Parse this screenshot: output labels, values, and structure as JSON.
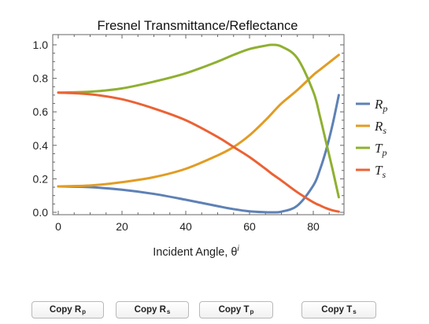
{
  "chart_data": {
    "type": "line",
    "title": "Fresnel Transmittance/Reflectance",
    "xlabel": "Incident Angle, θ",
    "xlabel_superscript": "i",
    "xlim": [
      0,
      90
    ],
    "ylim": [
      0,
      1.02
    ],
    "xticks": [
      0,
      20,
      40,
      60,
      80
    ],
    "yticks": [
      "0.0",
      "0.2",
      "0.4",
      "0.6",
      "0.8",
      "1.0"
    ],
    "grid": false,
    "legend_position": "right",
    "x": [
      0,
      10,
      20,
      30,
      40,
      50,
      55,
      60,
      65,
      67,
      70,
      75,
      80,
      82,
      84,
      86,
      88
    ],
    "series": [
      {
        "name": "R",
        "subscript": "p",
        "color": "#5e81b5",
        "values": [
          0.155,
          0.15,
          0.135,
          0.11,
          0.075,
          0.037,
          0.019,
          0.006,
          0.0005,
          0.0,
          0.004,
          0.04,
          0.16,
          0.25,
          0.37,
          0.52,
          0.7
        ]
      },
      {
        "name": "R",
        "subscript": "s",
        "color": "#e19c24",
        "values": [
          0.155,
          0.16,
          0.18,
          0.21,
          0.26,
          0.34,
          0.39,
          0.46,
          0.55,
          0.59,
          0.65,
          0.73,
          0.82,
          0.85,
          0.88,
          0.91,
          0.94
        ]
      },
      {
        "name": "T",
        "subscript": "p",
        "color": "#8fb032",
        "values": [
          0.715,
          0.72,
          0.74,
          0.78,
          0.83,
          0.9,
          0.94,
          0.975,
          0.995,
          1.0,
          0.99,
          0.92,
          0.72,
          0.58,
          0.42,
          0.26,
          0.09
        ]
      },
      {
        "name": "T",
        "subscript": "s",
        "color": "#eb6235",
        "values": [
          0.715,
          0.705,
          0.675,
          0.62,
          0.55,
          0.45,
          0.39,
          0.33,
          0.26,
          0.23,
          0.19,
          0.12,
          0.06,
          0.042,
          0.025,
          0.012,
          0.004
        ]
      }
    ]
  },
  "buttons": [
    {
      "label": "Copy R",
      "sub": "p"
    },
    {
      "label": "Copy R",
      "sub": "s"
    },
    {
      "label": "Copy T",
      "sub": "p"
    },
    {
      "label": "Copy T",
      "sub": "s"
    }
  ]
}
